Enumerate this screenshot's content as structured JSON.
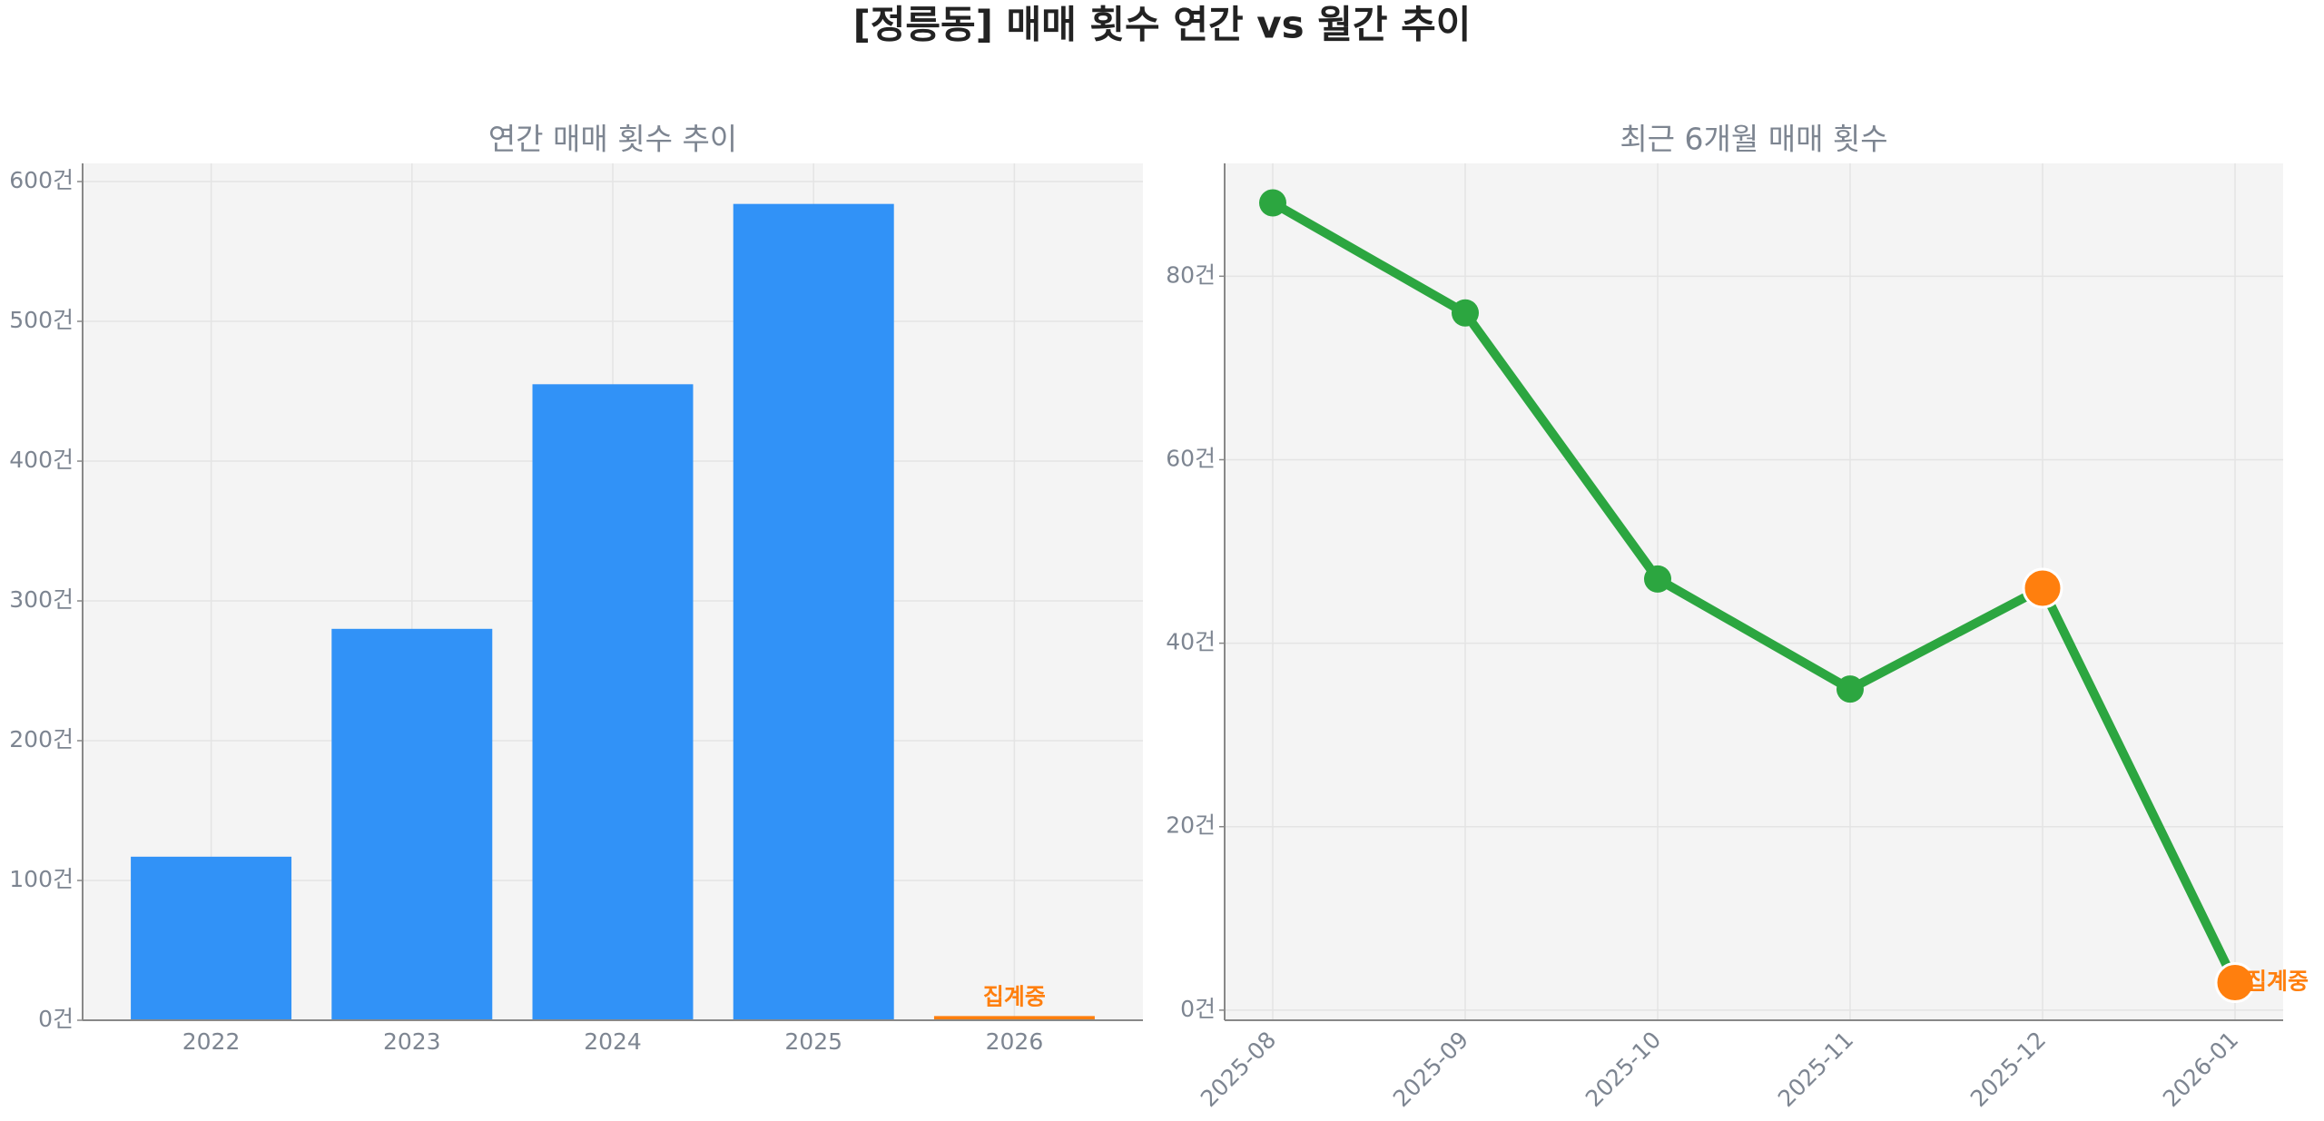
{
  "title": "[정릉동] 매매 횟수 연간 vs 월간 추이",
  "chart_data": [
    {
      "type": "bar",
      "title": "연간 매매 횟수 추이",
      "categories": [
        "2022",
        "2023",
        "2024",
        "2025",
        "2026"
      ],
      "values": [
        117,
        280,
        455,
        584,
        3
      ],
      "colors": [
        "#3192f7",
        "#3192f7",
        "#3192f7",
        "#3192f7",
        "#ff7f0e"
      ],
      "annotation": "집계중",
      "ylim": [
        0,
        613
      ],
      "yticks": [
        {
          "value": 0,
          "label": "0건"
        },
        {
          "value": 100,
          "label": "100건"
        },
        {
          "value": 200,
          "label": "200건"
        },
        {
          "value": 300,
          "label": "300건"
        },
        {
          "value": 400,
          "label": "400건"
        },
        {
          "value": 500,
          "label": "500건"
        },
        {
          "value": 600,
          "label": "600건"
        }
      ],
      "grid": true
    },
    {
      "type": "line",
      "title": "최근 6개월 매매 횟수",
      "categories": [
        "2025-08",
        "2025-09",
        "2025-10",
        "2025-11",
        "2025-12",
        "2026-01"
      ],
      "values": [
        88,
        76,
        47,
        35,
        46,
        3
      ],
      "color": "#2ca640",
      "marker_colors": [
        "#2ca640",
        "#2ca640",
        "#2ca640",
        "#2ca640",
        "#ff7f0e",
        "#ff7f0e"
      ],
      "annotation": "집계중",
      "ylim": [
        -1.1,
        92.3
      ],
      "yticks": [
        {
          "value": 0,
          "label": "0건"
        },
        {
          "value": 20,
          "label": "20건"
        },
        {
          "value": 40,
          "label": "40건"
        },
        {
          "value": 60,
          "label": "60건"
        },
        {
          "value": 80,
          "label": "80건"
        }
      ],
      "grid": true
    }
  ]
}
